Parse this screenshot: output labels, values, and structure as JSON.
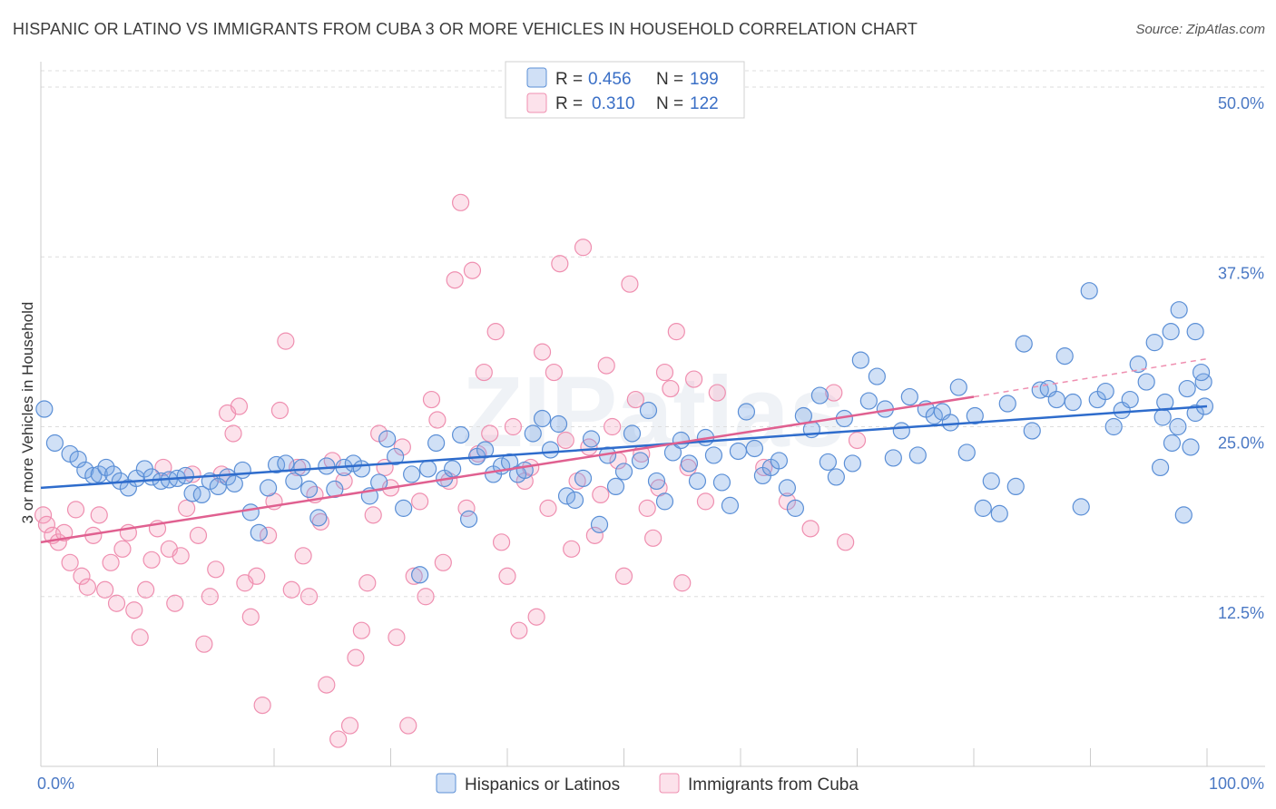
{
  "title": "HISPANIC OR LATINO VS IMMIGRANTS FROM CUBA 3 OR MORE VEHICLES IN HOUSEHOLD CORRELATION CHART",
  "source": "Source: ZipAtlas.com",
  "watermark": "ZIPatlas",
  "colors": {
    "blue_fill": "rgba(120,165,230,0.35)",
    "blue_stroke": "#5b8fd6",
    "blue_line": "#2e6ccc",
    "pink_fill": "rgba(245,160,190,0.30)",
    "pink_stroke": "#ef8fb0",
    "pink_line": "#e06090",
    "grid": "#dddddd",
    "axis_text": "#4a78c4"
  },
  "legend": {
    "rows": [
      {
        "r_label": "R = ",
        "r_value": "0.456",
        "n_label": "N = ",
        "n_value": "199"
      },
      {
        "r_label": "R = ",
        "r_value": "0.310",
        "n_label": "N = ",
        "n_value": "122"
      }
    ]
  },
  "chart_data": {
    "type": "scatter",
    "title": "HISPANIC OR LATINO VS IMMIGRANTS FROM CUBA 3 OR MORE VEHICLES IN HOUSEHOLD CORRELATION CHART",
    "ylabel": "3 or more Vehicles in Household",
    "xlabel": "",
    "xlim": [
      0,
      100
    ],
    "ylim": [
      0,
      50
    ],
    "x_tick_labels": [
      "0.0%",
      "100.0%"
    ],
    "y_ticks": [
      12.5,
      25.0,
      37.5,
      50.0
    ],
    "y_tick_labels": [
      "12.5%",
      "25.0%",
      "37.5%",
      "50.0%"
    ],
    "grid": "horizontal dashed",
    "legend_position": "bottom",
    "series": [
      {
        "name": "Hispanics or Latinos",
        "color": "#5b8fd6",
        "R": 0.456,
        "N": 199,
        "trend": {
          "x0": 0,
          "y0": 20.5,
          "x1": 100,
          "y1": 26.5
        },
        "points": [
          [
            0.3,
            26.3
          ],
          [
            1.2,
            23.8
          ],
          [
            2.5,
            23.0
          ],
          [
            3.2,
            22.6
          ],
          [
            3.8,
            21.8
          ],
          [
            4.5,
            21.4
          ],
          [
            5.0,
            21.5
          ],
          [
            5.6,
            22.0
          ],
          [
            6.2,
            21.5
          ],
          [
            6.8,
            21.0
          ],
          [
            7.5,
            20.5
          ],
          [
            8.2,
            21.2
          ],
          [
            8.9,
            21.9
          ],
          [
            9.5,
            21.3
          ],
          [
            10.3,
            21.0
          ],
          [
            11.0,
            21.1
          ],
          [
            11.7,
            21.2
          ],
          [
            12.4,
            21.4
          ],
          [
            13.0,
            20.1
          ],
          [
            13.8,
            20.0
          ],
          [
            14.5,
            21.0
          ],
          [
            15.2,
            20.6
          ],
          [
            16.0,
            21.3
          ],
          [
            16.6,
            20.8
          ],
          [
            17.3,
            21.8
          ],
          [
            18.0,
            18.7
          ],
          [
            18.7,
            17.2
          ],
          [
            19.5,
            20.5
          ],
          [
            20.2,
            22.2
          ],
          [
            21.0,
            22.3
          ],
          [
            21.7,
            21.0
          ],
          [
            22.4,
            22.0
          ],
          [
            23.0,
            20.4
          ],
          [
            23.8,
            18.3
          ],
          [
            24.5,
            22.1
          ],
          [
            25.2,
            20.4
          ],
          [
            26.0,
            22.0
          ],
          [
            26.8,
            22.3
          ],
          [
            27.5,
            21.9
          ],
          [
            28.2,
            19.9
          ],
          [
            29.0,
            20.9
          ],
          [
            29.7,
            24.1
          ],
          [
            30.4,
            22.8
          ],
          [
            31.1,
            19.0
          ],
          [
            31.8,
            21.5
          ],
          [
            32.5,
            14.1
          ],
          [
            33.2,
            21.9
          ],
          [
            33.9,
            23.8
          ],
          [
            34.6,
            21.2
          ],
          [
            35.3,
            21.9
          ],
          [
            36.0,
            24.4
          ],
          [
            36.7,
            18.2
          ],
          [
            37.4,
            22.8
          ],
          [
            38.1,
            23.3
          ],
          [
            38.8,
            21.5
          ],
          [
            39.5,
            22.1
          ],
          [
            40.2,
            22.4
          ],
          [
            40.9,
            21.5
          ],
          [
            41.5,
            21.8
          ],
          [
            42.2,
            24.5
          ],
          [
            43.0,
            25.6
          ],
          [
            43.7,
            23.3
          ],
          [
            44.4,
            25.2
          ],
          [
            45.1,
            19.9
          ],
          [
            45.8,
            19.6
          ],
          [
            46.5,
            21.2
          ],
          [
            47.2,
            24.1
          ],
          [
            47.9,
            17.8
          ],
          [
            48.6,
            22.9
          ],
          [
            49.3,
            20.6
          ],
          [
            50.0,
            21.7
          ],
          [
            50.7,
            24.5
          ],
          [
            51.4,
            22.5
          ],
          [
            52.1,
            26.2
          ],
          [
            52.8,
            21.0
          ],
          [
            53.5,
            19.5
          ],
          [
            54.2,
            23.1
          ],
          [
            54.9,
            24.0
          ],
          [
            55.6,
            22.3
          ],
          [
            56.3,
            21.0
          ],
          [
            57.0,
            24.2
          ],
          [
            57.7,
            22.9
          ],
          [
            58.4,
            20.9
          ],
          [
            59.1,
            19.2
          ],
          [
            59.8,
            23.2
          ],
          [
            60.5,
            26.1
          ],
          [
            61.2,
            23.4
          ],
          [
            61.9,
            21.4
          ],
          [
            62.6,
            22.0
          ],
          [
            63.3,
            22.5
          ],
          [
            64.0,
            20.5
          ],
          [
            64.7,
            19.0
          ],
          [
            65.4,
            25.8
          ],
          [
            66.1,
            24.8
          ],
          [
            66.8,
            27.3
          ],
          [
            67.5,
            22.4
          ],
          [
            68.2,
            21.3
          ],
          [
            68.9,
            25.6
          ],
          [
            69.6,
            22.3
          ],
          [
            70.3,
            29.9
          ],
          [
            71.0,
            26.9
          ],
          [
            71.7,
            28.7
          ],
          [
            72.4,
            26.3
          ],
          [
            73.1,
            22.7
          ],
          [
            73.8,
            24.7
          ],
          [
            74.5,
            27.2
          ],
          [
            75.2,
            22.9
          ],
          [
            75.9,
            26.3
          ],
          [
            76.6,
            25.8
          ],
          [
            77.3,
            26.1
          ],
          [
            78.0,
            25.3
          ],
          [
            78.7,
            27.9
          ],
          [
            79.4,
            23.1
          ],
          [
            80.1,
            25.8
          ],
          [
            80.8,
            19.0
          ],
          [
            81.5,
            21.0
          ],
          [
            82.2,
            18.6
          ],
          [
            82.9,
            26.7
          ],
          [
            83.6,
            20.6
          ],
          [
            84.3,
            31.1
          ],
          [
            85.0,
            24.7
          ],
          [
            85.7,
            27.7
          ],
          [
            86.4,
            27.8
          ],
          [
            87.1,
            27.0
          ],
          [
            87.8,
            30.2
          ],
          [
            88.5,
            26.8
          ],
          [
            89.2,
            19.1
          ],
          [
            89.9,
            35.0
          ],
          [
            90.6,
            27.0
          ],
          [
            91.3,
            27.6
          ],
          [
            92.0,
            25.0
          ],
          [
            92.7,
            26.2
          ],
          [
            93.4,
            27.0
          ],
          [
            94.1,
            29.6
          ],
          [
            94.8,
            28.3
          ],
          [
            95.5,
            31.2
          ],
          [
            96.2,
            25.7
          ],
          [
            96.9,
            32.0
          ],
          [
            97.6,
            33.6
          ],
          [
            98.3,
            27.8
          ],
          [
            99.0,
            32.0
          ],
          [
            99.7,
            28.3
          ],
          [
            96.0,
            22.0
          ],
          [
            97.0,
            23.8
          ],
          [
            98.0,
            18.5
          ],
          [
            99.0,
            26.0
          ],
          [
            99.5,
            29.0
          ],
          [
            99.8,
            26.5
          ],
          [
            98.6,
            23.5
          ],
          [
            97.5,
            25.0
          ],
          [
            96.4,
            26.8
          ]
        ]
      },
      {
        "name": "Immigrants from Cuba",
        "color": "#ef8fb0",
        "R": 0.31,
        "N": 122,
        "trend": {
          "x0": 0,
          "y0": 16.5,
          "x1": 80,
          "y1": 27.2
        },
        "trend_dashed_to": {
          "x": 100,
          "y": 30.0
        },
        "points": [
          [
            0.2,
            18.5
          ],
          [
            0.5,
            17.8
          ],
          [
            1.0,
            17.0
          ],
          [
            1.5,
            16.5
          ],
          [
            2.0,
            17.2
          ],
          [
            2.5,
            15.0
          ],
          [
            3.0,
            18.9
          ],
          [
            3.5,
            14.0
          ],
          [
            4.0,
            13.2
          ],
          [
            4.5,
            17.0
          ],
          [
            5.0,
            18.5
          ],
          [
            5.5,
            13.0
          ],
          [
            6.0,
            15.0
          ],
          [
            6.5,
            12.0
          ],
          [
            7.0,
            16.0
          ],
          [
            7.5,
            17.2
          ],
          [
            8.0,
            11.5
          ],
          [
            8.5,
            9.5
          ],
          [
            9.0,
            13.0
          ],
          [
            9.5,
            15.2
          ],
          [
            10.0,
            17.5
          ],
          [
            10.5,
            22.0
          ],
          [
            11.0,
            16.0
          ],
          [
            11.5,
            12.0
          ],
          [
            12.0,
            15.5
          ],
          [
            12.5,
            19.0
          ],
          [
            13.0,
            21.5
          ],
          [
            13.5,
            17.0
          ],
          [
            14.0,
            9.0
          ],
          [
            14.5,
            12.5
          ],
          [
            15.0,
            14.5
          ],
          [
            15.5,
            21.5
          ],
          [
            16.0,
            26.0
          ],
          [
            16.5,
            24.5
          ],
          [
            17.0,
            26.5
          ],
          [
            17.5,
            13.5
          ],
          [
            18.0,
            11.0
          ],
          [
            18.5,
            14.0
          ],
          [
            19.0,
            4.5
          ],
          [
            19.5,
            17.0
          ],
          [
            20.0,
            19.5
          ],
          [
            20.5,
            26.2
          ],
          [
            21.0,
            31.3
          ],
          [
            21.5,
            13.0
          ],
          [
            22.0,
            22.0
          ],
          [
            22.5,
            15.5
          ],
          [
            23.0,
            12.5
          ],
          [
            23.5,
            20.0
          ],
          [
            24.0,
            18.0
          ],
          [
            24.5,
            6.0
          ],
          [
            25.0,
            22.5
          ],
          [
            25.5,
            2.0
          ],
          [
            26.0,
            21.0
          ],
          [
            26.5,
            3.0
          ],
          [
            27.0,
            8.0
          ],
          [
            27.5,
            10.0
          ],
          [
            28.0,
            13.5
          ],
          [
            28.5,
            18.5
          ],
          [
            29.0,
            24.5
          ],
          [
            29.5,
            22.0
          ],
          [
            30.0,
            20.5
          ],
          [
            30.5,
            9.5
          ],
          [
            31.0,
            23.5
          ],
          [
            31.5,
            3.0
          ],
          [
            32.0,
            14.0
          ],
          [
            32.5,
            19.5
          ],
          [
            33.0,
            12.5
          ],
          [
            33.5,
            27.0
          ],
          [
            34.0,
            25.5
          ],
          [
            34.5,
            15.0
          ],
          [
            35.0,
            21.0
          ],
          [
            35.5,
            35.8
          ],
          [
            36.0,
            41.5
          ],
          [
            36.5,
            19.0
          ],
          [
            37.0,
            36.5
          ],
          [
            37.5,
            23.0
          ],
          [
            38.0,
            29.0
          ],
          [
            38.5,
            24.5
          ],
          [
            39.0,
            32.0
          ],
          [
            39.5,
            16.5
          ],
          [
            40.0,
            14.0
          ],
          [
            40.5,
            25.0
          ],
          [
            41.0,
            10.0
          ],
          [
            41.5,
            21.0
          ],
          [
            42.0,
            22.0
          ],
          [
            42.5,
            11.0
          ],
          [
            43.0,
            30.5
          ],
          [
            43.5,
            19.0
          ],
          [
            44.0,
            29.0
          ],
          [
            44.5,
            37.0
          ],
          [
            45.0,
            24.0
          ],
          [
            45.5,
            16.0
          ],
          [
            46.0,
            21.0
          ],
          [
            46.5,
            38.2
          ],
          [
            47.0,
            23.5
          ],
          [
            47.5,
            17.0
          ],
          [
            48.0,
            20.0
          ],
          [
            48.5,
            29.5
          ],
          [
            49.0,
            25.0
          ],
          [
            49.5,
            22.5
          ],
          [
            50.0,
            14.0
          ],
          [
            50.5,
            35.5
          ],
          [
            51.0,
            27.0
          ],
          [
            51.5,
            23.0
          ],
          [
            52.0,
            19.0
          ],
          [
            52.5,
            16.8
          ],
          [
            53.0,
            20.5
          ],
          [
            53.5,
            29.0
          ],
          [
            54.0,
            27.8
          ],
          [
            54.5,
            32.0
          ],
          [
            55.0,
            13.5
          ],
          [
            55.5,
            22.0
          ],
          [
            56.0,
            28.5
          ],
          [
            57.0,
            19.5
          ],
          [
            58.0,
            27.5
          ],
          [
            62.0,
            22.0
          ],
          [
            64.0,
            19.5
          ],
          [
            66.0,
            17.5
          ],
          [
            68.0,
            27.5
          ],
          [
            69.0,
            16.5
          ],
          [
            70.0,
            24.0
          ]
        ]
      }
    ]
  },
  "bottom_legend": [
    "Hispanics or Latinos",
    "Immigrants from Cuba"
  ]
}
